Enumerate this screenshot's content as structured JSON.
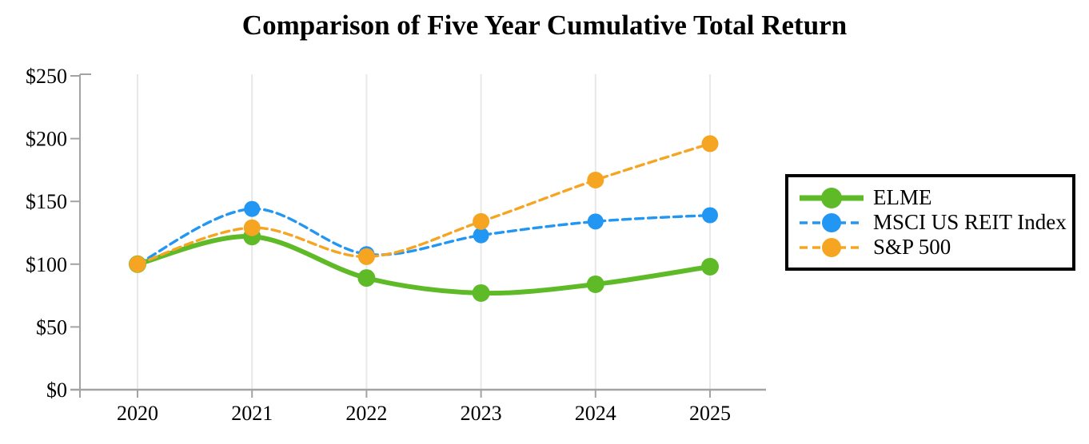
{
  "title": "Comparison of Five Year Cumulative Total Return",
  "chart_data": {
    "type": "line",
    "title": "Comparison of Five Year Cumulative Total Return",
    "x": [
      "2020",
      "2021",
      "2022",
      "2023",
      "2024",
      "2025"
    ],
    "series": [
      {
        "name": "ELME",
        "values": [
          100,
          122,
          89,
          77,
          84,
          98
        ],
        "color": "#5FBA28",
        "style": "solid",
        "line_width": 6,
        "marker_radius": 11
      },
      {
        "name": "MSCI US REIT Index",
        "values": [
          100,
          144,
          108,
          123,
          134,
          139
        ],
        "color": "#2196F3",
        "style": "dashed",
        "line_width": 3.4,
        "marker_radius": 10
      },
      {
        "name": "S&P 500",
        "values": [
          100,
          129,
          106,
          134,
          167,
          196
        ],
        "color": "#F6A522",
        "style": "dashed",
        "line_width": 3.4,
        "marker_radius": 10.5
      }
    ],
    "y_ticks": [
      "$250",
      "$200",
      "$150",
      "$100",
      "$50",
      "$0"
    ],
    "y_tick_values": [
      250,
      200,
      150,
      100,
      50,
      0
    ],
    "ylim": [
      0,
      250
    ],
    "xlabel": "",
    "ylabel": "",
    "grid": "vertical-only",
    "legend_position": "right",
    "smooth_lines": true,
    "colors": {
      "axis": "#A3A3A3",
      "grid": "#E8E8E8",
      "text": "#000000",
      "background": "#FFFFFF"
    }
  }
}
